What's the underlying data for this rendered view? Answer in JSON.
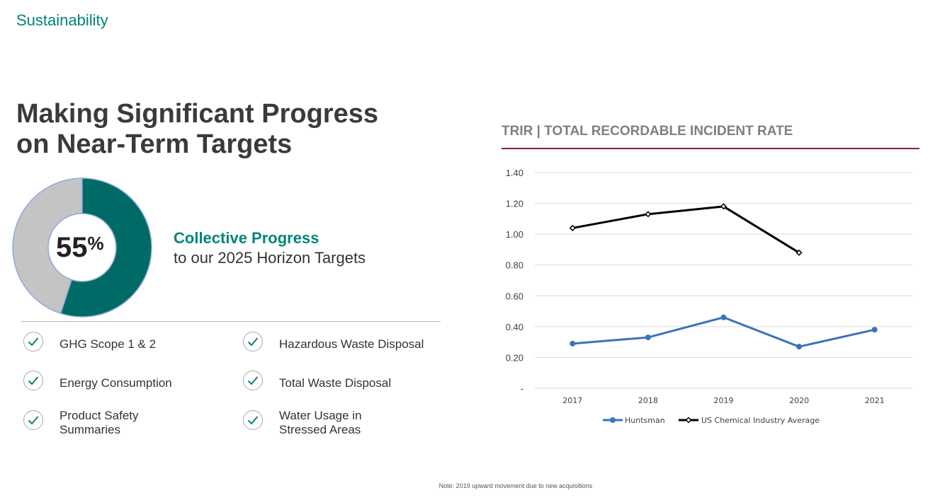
{
  "section": "Sustainability",
  "headline": [
    "Making Significant Progress",
    "on Near-Term Targets"
  ],
  "progress": {
    "percent_value": 55,
    "percent_number": "55",
    "percent_sign": "%",
    "title": "Collective Progress",
    "subtitle": "to our 2025 Horizon Targets",
    "colors": {
      "filled": "#006b66",
      "remaining": "#c4c4c4",
      "outline": "#8faadc"
    }
  },
  "targets": {
    "icon": "checkmark-icon",
    "items": [
      {
        "label": [
          "GHG Scope 1 & 2"
        ]
      },
      {
        "label": [
          "Hazardous Waste Disposal"
        ]
      },
      {
        "label": [
          "Energy Consumption"
        ]
      },
      {
        "label": [
          "Total Waste Disposal"
        ]
      },
      {
        "label": [
          "Product Safety",
          "Summaries"
        ]
      },
      {
        "label": [
          "Water Usage in",
          "Stressed Areas"
        ]
      }
    ]
  },
  "chart_data": {
    "type": "line",
    "title": "TRIR | TOTAL RECORDABLE INCIDENT RATE",
    "categories": [
      "2017",
      "2018",
      "2019",
      "2020",
      "2021"
    ],
    "y_ticks": [
      "-",
      "0.20",
      "0.40",
      "0.60",
      "0.80",
      "1.00",
      "1.20",
      "1.40"
    ],
    "ylim": [
      0,
      1.4
    ],
    "grid": true,
    "legend_position": "bottom",
    "series": [
      {
        "name": "Huntsman",
        "color": "#3b73b9",
        "marker": "circle",
        "values": [
          0.29,
          0.33,
          0.46,
          0.27,
          0.38
        ]
      },
      {
        "name": "US Chemical Industry Average",
        "color": "#000000",
        "marker": "diamond",
        "values": [
          1.04,
          1.13,
          1.18,
          0.88,
          null
        ]
      }
    ]
  },
  "note": "Note: 2019 upward movement due to new acquisitions"
}
